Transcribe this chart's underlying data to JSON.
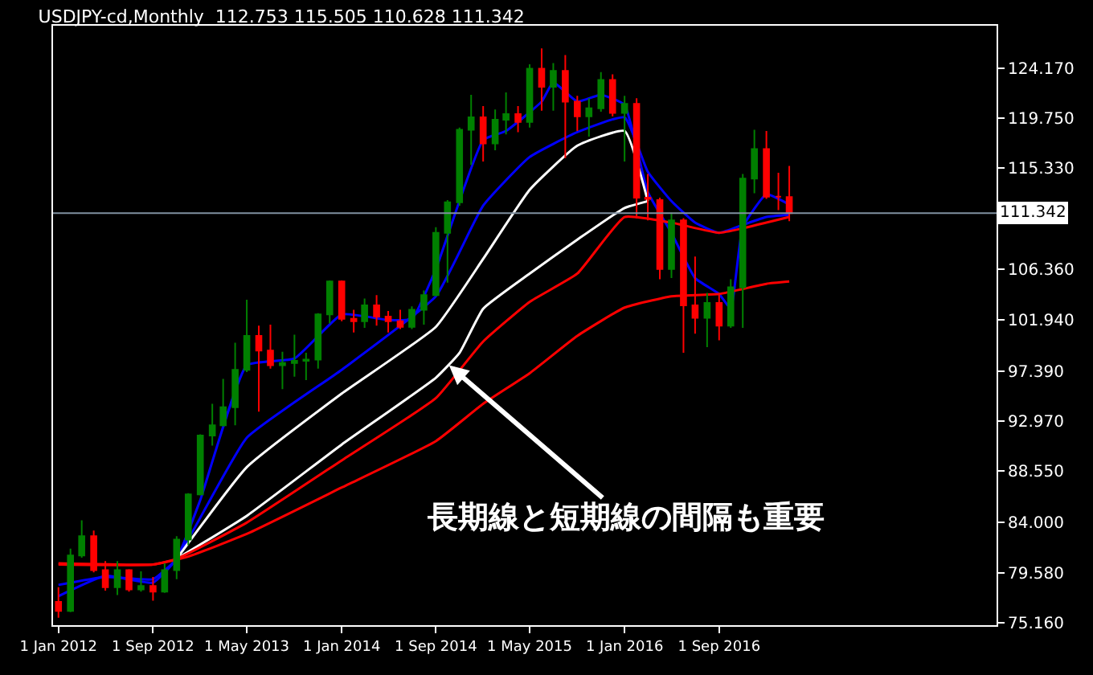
{
  "chart_data": {
    "type": "candlestick",
    "title": "USDJPY-cd,Monthly  112.753 115.505 110.628 111.342",
    "x": [
      "2012-01",
      "2012-02",
      "2012-03",
      "2012-04",
      "2012-05",
      "2012-06",
      "2012-07",
      "2012-08",
      "2012-09",
      "2012-10",
      "2012-11",
      "2012-12",
      "2013-01",
      "2013-02",
      "2013-03",
      "2013-04",
      "2013-05",
      "2013-06",
      "2013-07",
      "2013-08",
      "2013-09",
      "2013-10",
      "2013-11",
      "2013-12",
      "2014-01",
      "2014-02",
      "2014-03",
      "2014-04",
      "2014-05",
      "2014-06",
      "2014-07",
      "2014-08",
      "2014-09",
      "2014-10",
      "2014-11",
      "2014-12",
      "2015-01",
      "2015-02",
      "2015-03",
      "2015-04",
      "2015-05",
      "2015-06",
      "2015-07",
      "2015-08",
      "2015-09",
      "2015-10",
      "2015-11",
      "2015-12",
      "2016-01",
      "2016-02",
      "2016-03",
      "2016-04",
      "2016-05",
      "2016-06",
      "2016-07",
      "2016-08",
      "2016-09",
      "2016-10",
      "2016-11",
      "2016-12",
      "2017-01",
      "2017-02",
      "2017-03"
    ],
    "ohlc": [
      [
        77.0,
        78.3,
        75.6,
        76.2
      ],
      [
        76.2,
        81.7,
        76.1,
        81.1
      ],
      [
        81.1,
        84.2,
        80.9,
        82.8
      ],
      [
        82.8,
        83.3,
        79.6,
        79.8
      ],
      [
        79.8,
        80.6,
        78.0,
        78.3
      ],
      [
        78.3,
        80.6,
        77.6,
        79.8
      ],
      [
        79.8,
        79.9,
        77.9,
        78.1
      ],
      [
        78.1,
        79.7,
        77.9,
        78.4
      ],
      [
        78.4,
        79.2,
        77.1,
        77.9
      ],
      [
        77.9,
        80.4,
        77.8,
        79.8
      ],
      [
        79.8,
        82.8,
        79.0,
        82.5
      ],
      [
        82.5,
        86.6,
        82.0,
        86.5
      ],
      [
        86.5,
        91.8,
        86.4,
        91.7
      ],
      [
        91.7,
        94.5,
        90.8,
        92.6
      ],
      [
        92.6,
        96.7,
        92.5,
        94.2
      ],
      [
        94.2,
        99.9,
        92.6,
        97.5
      ],
      [
        97.5,
        103.7,
        97.3,
        100.5
      ],
      [
        100.5,
        101.4,
        93.8,
        99.2
      ],
      [
        99.2,
        101.5,
        97.6,
        97.9
      ],
      [
        97.9,
        99.1,
        95.8,
        98.1
      ],
      [
        98.1,
        100.6,
        96.9,
        98.3
      ],
      [
        98.3,
        99.0,
        96.6,
        98.4
      ],
      [
        98.4,
        102.5,
        97.6,
        102.4
      ],
      [
        102.4,
        105.4,
        101.6,
        105.3
      ],
      [
        105.3,
        105.4,
        101.8,
        102.0
      ],
      [
        102.0,
        102.8,
        100.8,
        101.8
      ],
      [
        101.8,
        103.8,
        101.2,
        103.2
      ],
      [
        103.2,
        104.1,
        101.4,
        102.2
      ],
      [
        102.2,
        102.7,
        100.8,
        101.8
      ],
      [
        101.8,
        102.8,
        101.1,
        101.3
      ],
      [
        101.3,
        103.1,
        101.1,
        102.8
      ],
      [
        102.8,
        104.5,
        101.5,
        104.1
      ],
      [
        104.1,
        110.1,
        104.0,
        109.6
      ],
      [
        109.6,
        112.5,
        105.2,
        112.3
      ],
      [
        112.3,
        118.9,
        112.0,
        118.7
      ],
      [
        118.7,
        121.8,
        115.6,
        119.8
      ],
      [
        119.8,
        120.8,
        115.9,
        117.5
      ],
      [
        117.5,
        120.5,
        116.9,
        119.6
      ],
      [
        119.6,
        122.0,
        118.3,
        120.1
      ],
      [
        120.1,
        120.8,
        118.5,
        119.4
      ],
      [
        119.4,
        124.5,
        118.9,
        124.1
      ],
      [
        124.1,
        125.9,
        120.4,
        122.5
      ],
      [
        122.5,
        124.6,
        120.4,
        123.9
      ],
      [
        123.9,
        125.3,
        116.2,
        121.2
      ],
      [
        121.2,
        121.7,
        118.6,
        119.9
      ],
      [
        119.9,
        121.5,
        118.1,
        120.6
      ],
      [
        120.6,
        123.8,
        120.3,
        123.1
      ],
      [
        123.1,
        123.6,
        119.9,
        120.2
      ],
      [
        120.2,
        121.7,
        115.9,
        121.0
      ],
      [
        121.0,
        121.5,
        110.9,
        112.7
      ],
      [
        112.7,
        114.8,
        110.7,
        112.6
      ],
      [
        112.5,
        112.7,
        105.5,
        106.4
      ],
      [
        106.4,
        111.4,
        105.6,
        110.7
      ],
      [
        110.7,
        110.9,
        99.0,
        103.2
      ],
      [
        103.2,
        107.5,
        100.7,
        102.1
      ],
      [
        102.1,
        104.3,
        99.5,
        103.4
      ],
      [
        103.4,
        104.2,
        100.1,
        101.4
      ],
      [
        101.4,
        105.5,
        101.2,
        104.8
      ],
      [
        104.8,
        114.8,
        101.2,
        114.4
      ],
      [
        114.4,
        118.7,
        113.1,
        117.0
      ],
      [
        117.0,
        118.6,
        112.6,
        112.8
      ],
      [
        112.8,
        114.9,
        111.6,
        112.8
      ],
      [
        112.753,
        115.505,
        110.628,
        111.342
      ]
    ],
    "series": [
      {
        "type": "line",
        "color": "#0000ff",
        "x": [
          "2012-01",
          "2012-05",
          "2012-09",
          "2012-11",
          "2013-01",
          "2013-05",
          "2013-09",
          "2014-01",
          "2014-05",
          "2014-07",
          "2014-09",
          "2015-01",
          "2015-03",
          "2015-06",
          "2015-07",
          "2015-09",
          "2015-11",
          "2016-01",
          "2016-03",
          "2016-05",
          "2016-07",
          "2016-09",
          "2016-10",
          "2016-11",
          "2017-01",
          "2017-03"
        ],
        "values": [
          77.5,
          79.3,
          78.7,
          80.8,
          86.0,
          97.9,
          98.5,
          102.4,
          101.9,
          102.0,
          106.4,
          117.8,
          118.6,
          121.2,
          122.9,
          121.2,
          121.8,
          120.9,
          113.2,
          109.6,
          105.6,
          104.2,
          102.9,
          110.1,
          113.0,
          112.1
        ]
      },
      {
        "type": "line",
        "color": "#0000ff",
        "x": [
          "2012-01",
          "2012-05",
          "2012-09",
          "2012-11",
          "2013-05",
          "2014-01",
          "2014-09",
          "2015-01",
          "2015-05",
          "2015-09",
          "2016-01",
          "2016-03",
          "2016-05",
          "2016-07",
          "2016-09",
          "2016-11",
          "2017-01",
          "2017-03"
        ],
        "values": [
          78.5,
          79.2,
          79.0,
          80.8,
          91.5,
          97.5,
          104.0,
          112.0,
          116.3,
          118.5,
          119.8,
          115.0,
          112.4,
          110.5,
          109.6,
          110.3,
          111.0,
          111.2
        ]
      },
      {
        "type": "line",
        "color": "#ffffff",
        "x": [
          "2012-11",
          "2013-05",
          "2014-01",
          "2014-09",
          "2015-01",
          "2015-05",
          "2015-09",
          "2016-01",
          "2016-03"
        ],
        "values": [
          80.8,
          88.9,
          95.4,
          101.3,
          107.3,
          113.4,
          117.3,
          118.6,
          112.4
        ]
      },
      {
        "type": "line",
        "color": "#ffffff",
        "x": [
          "2012-11",
          "2013-05",
          "2014-01",
          "2014-09",
          "2014-11",
          "2015-01",
          "2015-05",
          "2015-09",
          "2016-01",
          "2016-03"
        ],
        "values": [
          80.8,
          84.6,
          90.9,
          96.8,
          99.0,
          102.9,
          106.0,
          109.0,
          111.8,
          112.4
        ]
      },
      {
        "type": "line",
        "color": "#ff0000",
        "x": [
          "2012-01",
          "2012-09",
          "2012-11",
          "2013-05",
          "2014-01",
          "2014-09",
          "2015-01",
          "2015-05",
          "2015-09",
          "2016-01",
          "2016-05",
          "2016-09",
          "2016-11",
          "2017-03"
        ],
        "values": [
          80.4,
          80.3,
          80.8,
          84.0,
          89.5,
          95.0,
          100.0,
          103.5,
          106.0,
          111.0,
          110.5,
          109.6,
          110.0,
          111.0
        ]
      },
      {
        "type": "line",
        "color": "#ff0000",
        "x": [
          "2012-01",
          "2012-09",
          "2012-12",
          "2013-05",
          "2014-01",
          "2014-09",
          "2015-01",
          "2015-05",
          "2015-09",
          "2016-01",
          "2016-05",
          "2016-09",
          "2017-01",
          "2017-03"
        ],
        "values": [
          80.3,
          80.3,
          81.0,
          83.0,
          87.1,
          91.2,
          94.5,
          97.2,
          100.5,
          103.0,
          104.0,
          104.2,
          105.1,
          105.3
        ]
      }
    ],
    "ylim": [
      74.94,
      127.9
    ],
    "yticks": [
      {
        "value": 75.16,
        "label": "75.160"
      },
      {
        "value": 79.58,
        "label": "79.580"
      },
      {
        "value": 84.0,
        "label": "84.000"
      },
      {
        "value": 88.55,
        "label": "88.550"
      },
      {
        "value": 92.97,
        "label": "92.970"
      },
      {
        "value": 97.39,
        "label": "97.390"
      },
      {
        "value": 101.94,
        "label": "101.940"
      },
      {
        "value": 106.36,
        "label": "106.360"
      },
      {
        "value": 115.33,
        "label": "115.330"
      },
      {
        "value": 119.75,
        "label": "119.750"
      },
      {
        "value": 124.17,
        "label": "124.170"
      }
    ],
    "xlim": [
      "2011-12-18",
      "2018-08-18"
    ],
    "xticks": [
      {
        "value": "2012-01-01",
        "label": "1 Jan 2012"
      },
      {
        "value": "2012-09-01",
        "label": "1 Sep 2012"
      },
      {
        "value": "2013-05-01",
        "label": "1 May 2013"
      },
      {
        "value": "2014-01-01",
        "label": "1 Jan 2014"
      },
      {
        "value": "2014-09-01",
        "label": "1 Sep 2014"
      },
      {
        "value": "2015-05-01",
        "label": "1 May 2015"
      },
      {
        "value": "2016-01-01",
        "label": "1 Jan 2016"
      },
      {
        "value": "2016-09-01",
        "label": "1 Sep 2016"
      }
    ],
    "ref_lines": [
      {
        "axis": "y",
        "value": 111.342,
        "label": "111.342",
        "color": "#8090a0"
      }
    ],
    "annotations": [
      {
        "text": "長期線と短期線の間隔も重要",
        "x": "2014-10-05",
        "y": 97.9
      }
    ],
    "grid": false
  }
}
